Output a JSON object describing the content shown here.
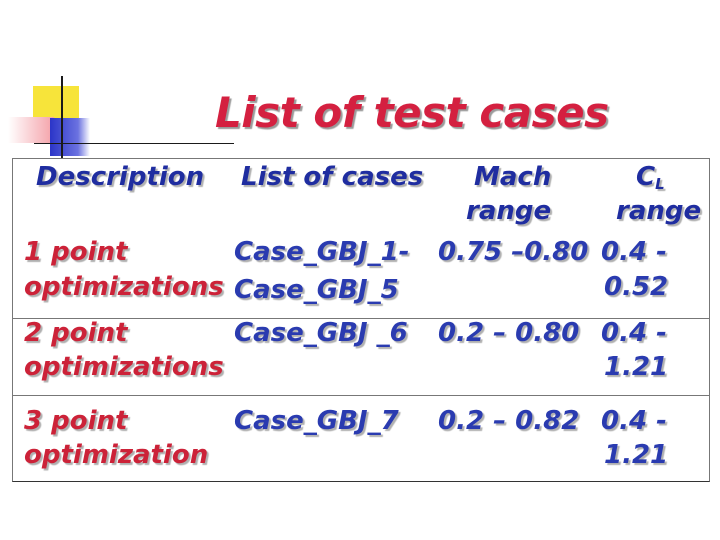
{
  "title": "List of test cases",
  "headers": {
    "description": "Description",
    "cases": "List of cases",
    "mach_line1": "Mach",
    "mach_line2": "range",
    "cl_symbol": "C",
    "cl_subscript": "L",
    "cl_line2": "range"
  },
  "rows": [
    {
      "description_line1": "1 point",
      "description_line2": "optimizations",
      "cases_line1": "Case_GBJ_1-",
      "cases_line2": "Case_GBJ_5",
      "mach": "0.75 –0.80",
      "cl_line1": "0.4 -",
      "cl_line2": "0.52"
    },
    {
      "description_line1": "2 point",
      "description_line2": "optimizations",
      "cases_line1": "Case_GBJ _6",
      "mach": "0.2 – 0.80",
      "cl_line1": "0.4  -",
      "cl_line2": "1.21"
    },
    {
      "description_line1": "3 point",
      "description_line2": "optimization",
      "cases_line1": "Case_GBJ_7",
      "mach": "0.2 – 0.82",
      "cl_line1": "0.4  -",
      "cl_line2": "1.21"
    }
  ],
  "colors": {
    "title": "#d42040",
    "header_text": "#1f2da0",
    "row_label_text": "#cc2238",
    "row_value_text": "#2a3bb0"
  }
}
